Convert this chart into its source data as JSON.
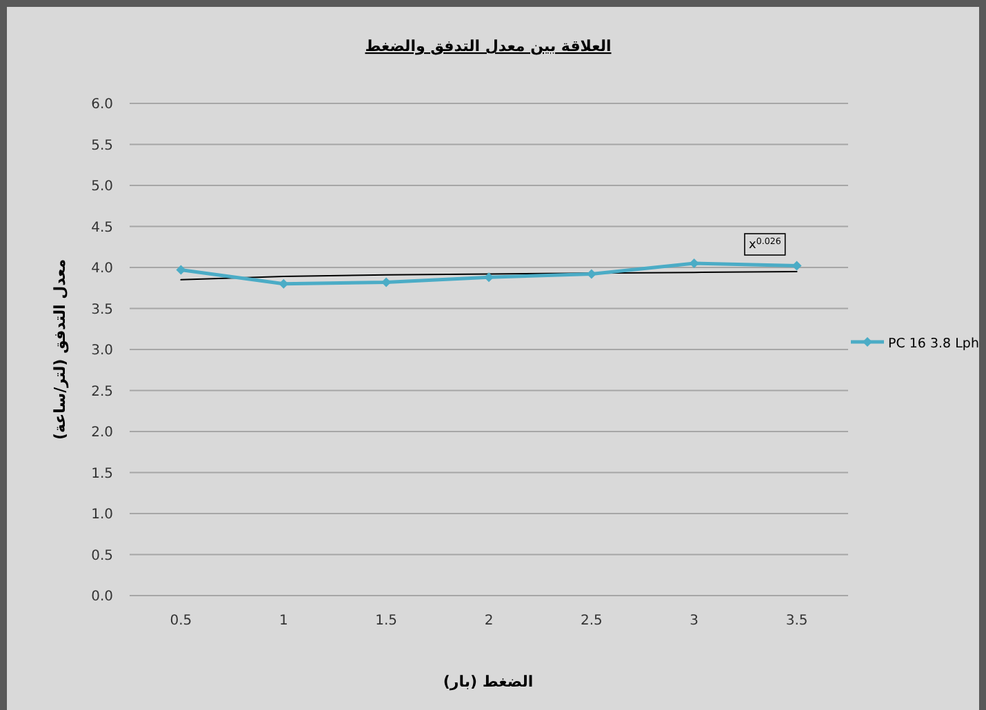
{
  "chart_data": {
    "type": "line",
    "title": "العلاقة بين معدل التدفق والضغط",
    "xlabel": "الضغط (بار)",
    "ylabel": "معدل التدفق (لتر/ساعة)",
    "categories": [
      "0.5",
      "1",
      "1.5",
      "2",
      "2.5",
      "3",
      "3.5"
    ],
    "series": [
      {
        "name": "PC 16 3.8 Lph",
        "color": "#4bacc6",
        "marker": "diamond",
        "values": [
          3.97,
          3.8,
          3.82,
          3.88,
          3.92,
          4.05,
          4.02
        ]
      },
      {
        "type": "line",
        "color": "#000000",
        "marker": "none",
        "values": [
          3.85,
          3.89,
          3.91,
          3.92,
          3.93,
          3.94,
          3.95
        ]
      }
    ],
    "ylim": [
      0,
      6
    ],
    "yticks": [
      {
        "value": 0,
        "label": "0.0"
      },
      {
        "value": 0.5,
        "label": "0.5"
      },
      {
        "value": 1,
        "label": "1.0"
      },
      {
        "value": 1.5,
        "label": "1.5"
      },
      {
        "value": 2,
        "label": "2.0"
      },
      {
        "value": 2.5,
        "label": "2.5"
      },
      {
        "value": 3,
        "label": "3.0"
      },
      {
        "value": 3.5,
        "label": "3.5"
      },
      {
        "value": 4,
        "label": "4.0"
      },
      {
        "value": 4.5,
        "label": "4.5"
      },
      {
        "value": 5,
        "label": "5.0"
      },
      {
        "value": 5.5,
        "label": "5.5"
      },
      {
        "value": 6,
        "label": "6.0"
      }
    ],
    "grid": "y",
    "legend": "right",
    "annotations": [
      "x$^{0.026}$"
    ]
  }
}
